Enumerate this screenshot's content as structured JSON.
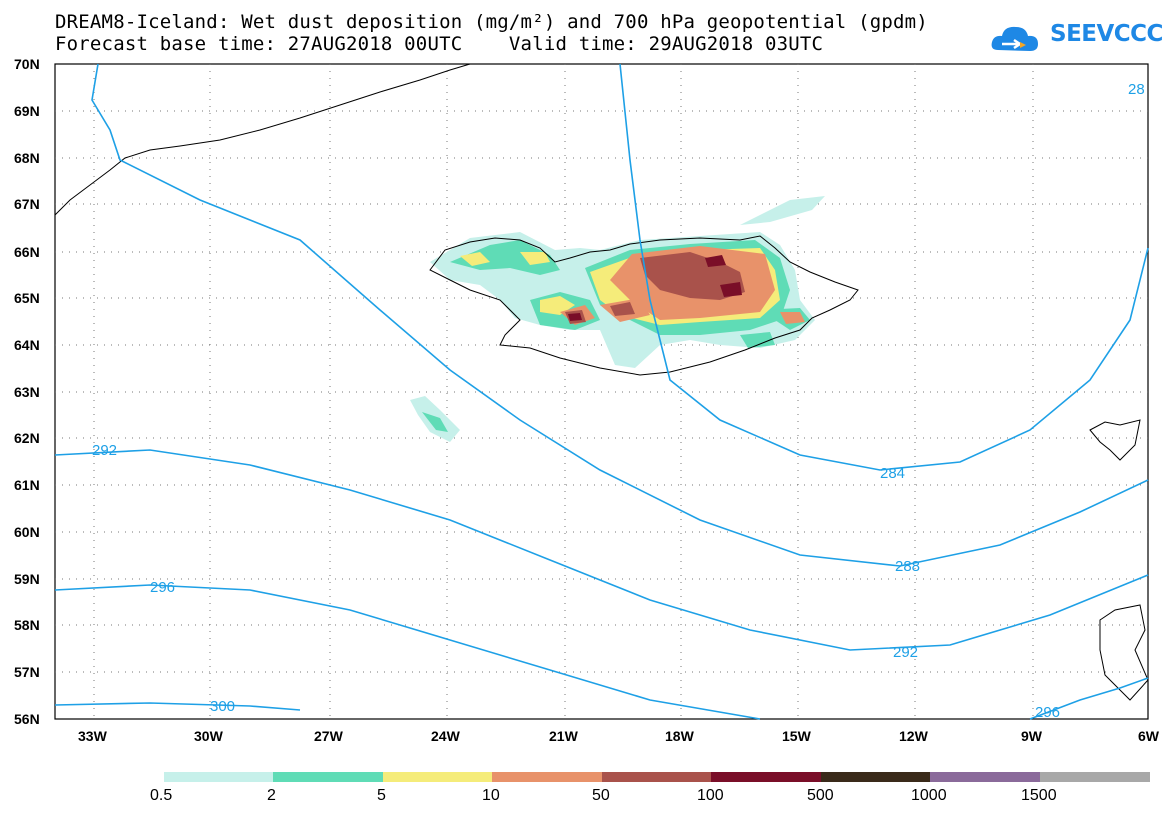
{
  "header": {
    "title_line1": "DREAM8-Iceland: Wet dust deposition (mg/m²) and 700 hPa geopotential (gpdm)",
    "title_line2": "Forecast base time: 27AUG2018 00UTC    Valid time: 29AUG2018 03UTC",
    "logo_text": "SEEVCCC",
    "logo_color": "#1e88e5"
  },
  "map": {
    "lon_range": [
      -34.5,
      -6
    ],
    "lat_range": [
      56,
      70
    ],
    "lat_labels": [
      "70N",
      "69N",
      "68N",
      "67N",
      "66N",
      "65N",
      "64N",
      "63N",
      "62N",
      "61N",
      "60N",
      "59N",
      "58N",
      "57N",
      "56N"
    ],
    "lon_labels": [
      "33W",
      "30W",
      "27W",
      "24W",
      "21W",
      "18W",
      "15W",
      "12W",
      "9W",
      "6W"
    ],
    "contour_color": "#1ea0e6",
    "contour_labels": [
      "292",
      "296",
      "300",
      "284",
      "288",
      "292",
      "296",
      "28"
    ]
  },
  "legend": {
    "colors": [
      "#c6f0ea",
      "#5fdcb6",
      "#f5ec7a",
      "#e8926a",
      "#a9524b",
      "#7a0e28",
      "#3a2a1a",
      "#8a6a9a",
      "#a8a8a8"
    ],
    "labels": [
      "0.5",
      "2",
      "5",
      "10",
      "50",
      "100",
      "500",
      "1000",
      "1500"
    ]
  }
}
